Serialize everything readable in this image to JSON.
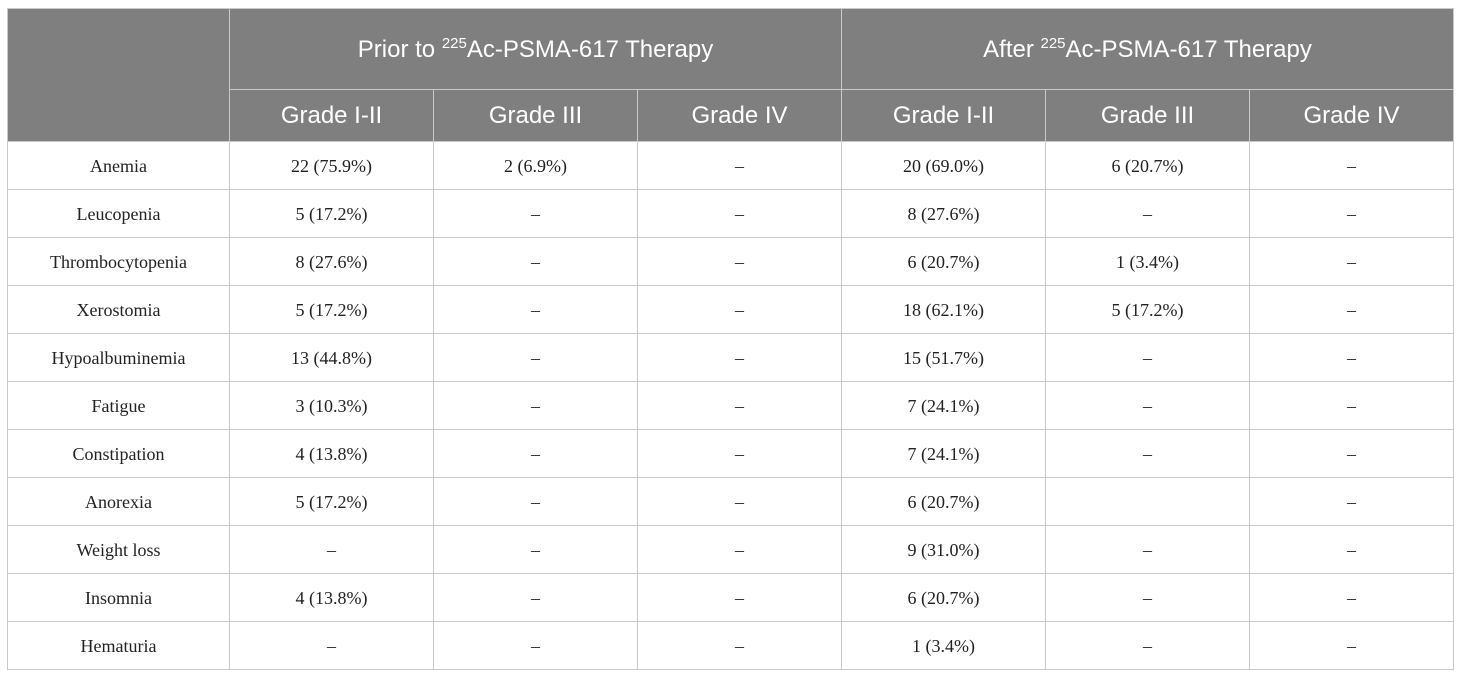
{
  "table": {
    "group_headers": [
      {
        "prefix": "Prior to ",
        "sup": "225",
        "suffix": "Ac-PSMA-617 Therapy"
      },
      {
        "prefix": "After ",
        "sup": "225",
        "suffix": "Ac-PSMA-617 Therapy"
      }
    ],
    "sub_headers": [
      "Grade I-II",
      "Grade III",
      "Grade IV",
      "Grade I-II",
      "Grade III",
      "Grade IV"
    ],
    "rows": [
      {
        "label": "Anemia",
        "cells": [
          "22 (75.9%)",
          "2 (6.9%)",
          "–",
          "20 (69.0%)",
          "6 (20.7%)",
          "–"
        ]
      },
      {
        "label": "Leucopenia",
        "cells": [
          "5 (17.2%)",
          "–",
          "–",
          "8 (27.6%)",
          "–",
          "–"
        ]
      },
      {
        "label": "Thrombocytopenia",
        "cells": [
          "8 (27.6%)",
          "–",
          "–",
          "6 (20.7%)",
          "1 (3.4%)",
          "–"
        ]
      },
      {
        "label": "Xerostomia",
        "cells": [
          "5 (17.2%)",
          "–",
          "–",
          "18 (62.1%)",
          "5 (17.2%)",
          "–"
        ]
      },
      {
        "label": "Hypoalbuminemia",
        "cells": [
          "13 (44.8%)",
          "–",
          "–",
          "15 (51.7%)",
          "–",
          "–"
        ]
      },
      {
        "label": "Fatigue",
        "cells": [
          "3 (10.3%)",
          "–",
          "–",
          "7 (24.1%)",
          "–",
          "–"
        ]
      },
      {
        "label": "Constipation",
        "cells": [
          "4 (13.8%)",
          "–",
          "–",
          "7 (24.1%)",
          "–",
          "–"
        ]
      },
      {
        "label": "Anorexia",
        "cells": [
          "5 (17.2%)",
          "–",
          "–",
          "6 (20.7%)",
          "",
          "–"
        ]
      },
      {
        "label": "Weight loss",
        "cells": [
          "–",
          "–",
          "–",
          "9 (31.0%)",
          "–",
          "–"
        ]
      },
      {
        "label": "Insomnia",
        "cells": [
          "4 (13.8%)",
          "–",
          "–",
          "6 (20.7%)",
          "–",
          "–"
        ]
      },
      {
        "label": "Hematuria",
        "cells": [
          "–",
          "–",
          "–",
          "1 (3.4%)",
          "–",
          "–"
        ]
      }
    ]
  }
}
